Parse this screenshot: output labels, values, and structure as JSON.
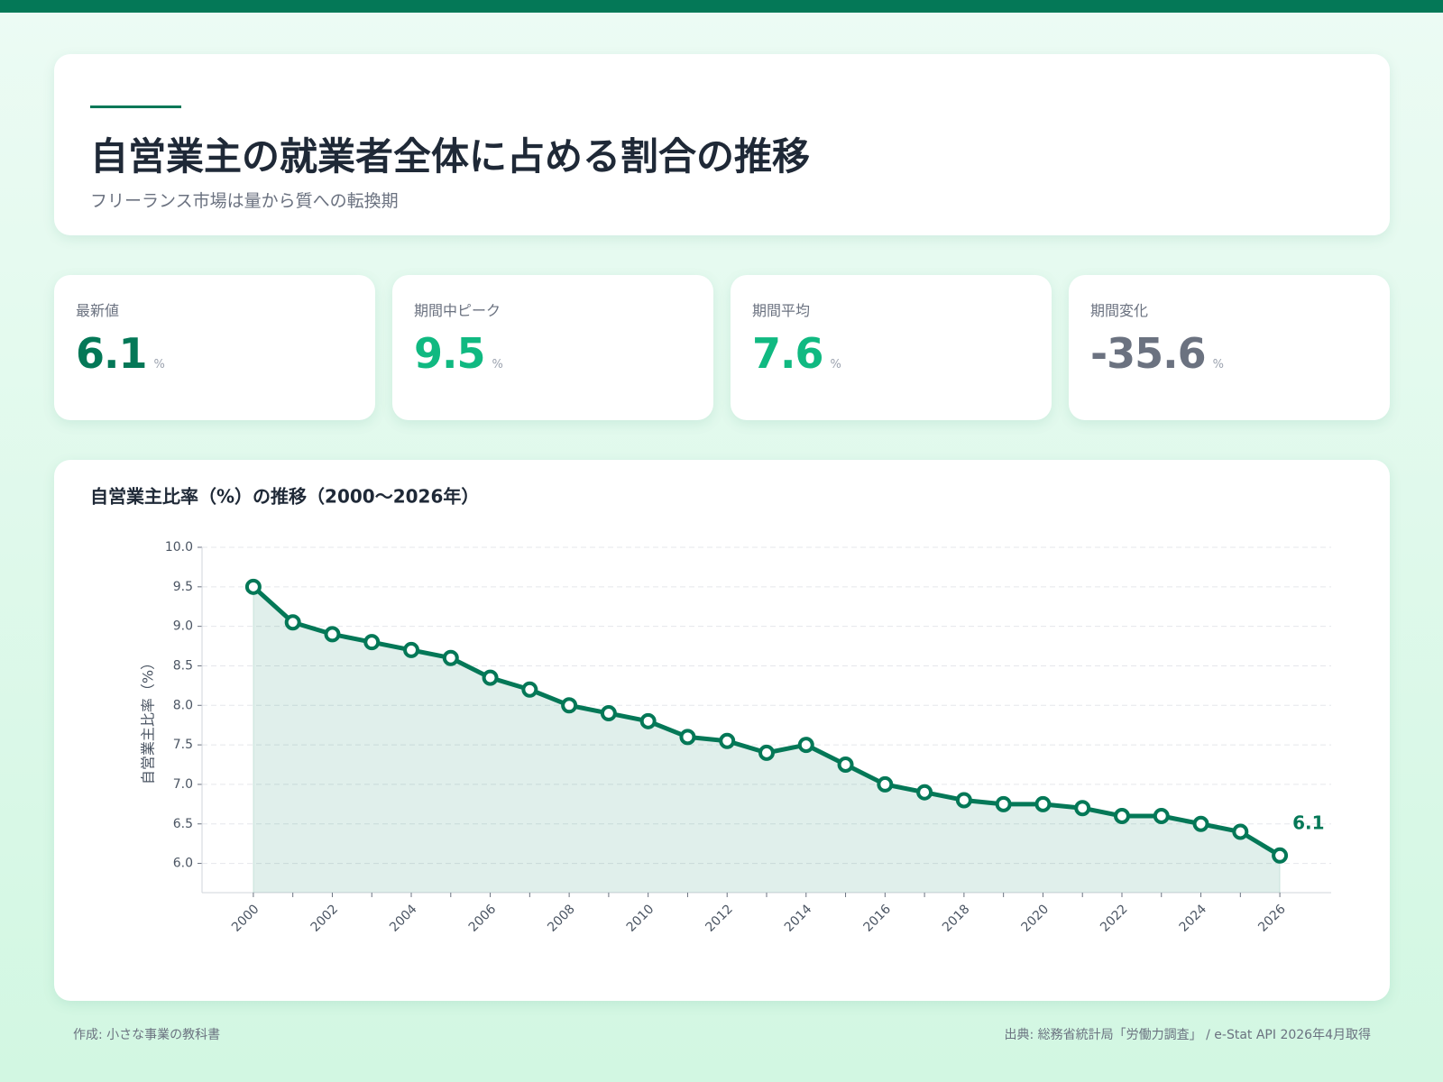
{
  "header": {
    "title": "自営業主の就業者全体に占める割合の推移",
    "subtitle": "フリーランス市場は量から質への転換期"
  },
  "kpis": [
    {
      "label": "最新値",
      "value": 6.1,
      "unit": "%"
    },
    {
      "label": "期間中ピーク",
      "value": 9.5,
      "unit": "%"
    },
    {
      "label": "期間平均",
      "value": 7.6,
      "unit": "%"
    },
    {
      "label": "期間変化",
      "value": -35.6,
      "unit": "%"
    }
  ],
  "chart_data": {
    "type": "line",
    "title": "自営業主比率（%）の推移（2000〜2026年）",
    "y_label": "自営業主比率（%）",
    "x": [
      2000,
      2001,
      2002,
      2003,
      2004,
      2005,
      2006,
      2007,
      2008,
      2009,
      2010,
      2011,
      2012,
      2013,
      2014,
      2015,
      2016,
      2017,
      2018,
      2019,
      2020,
      2021,
      2022,
      2023,
      2024,
      2025,
      2026
    ],
    "values": [
      9.5,
      9.05,
      8.9,
      8.8,
      8.7,
      8.6,
      8.35,
      8.2,
      8.0,
      7.9,
      7.8,
      7.6,
      7.55,
      7.4,
      7.5,
      7.25,
      7.0,
      6.9,
      6.8,
      6.75,
      6.75,
      6.7,
      6.6,
      6.6,
      6.5,
      6.4,
      6.1
    ],
    "color": "#047857",
    "xlim": [
      1998.7,
      2027.3
    ],
    "xticks": [
      2000,
      2002,
      2004,
      2006,
      2008,
      2010,
      2012,
      2014,
      2016,
      2018,
      2020,
      2022,
      2024,
      2026
    ],
    "ylim": [
      5.63,
      10.0
    ],
    "yticks": [
      {
        "value": 6,
        "label": "6.0"
      },
      6.5,
      {
        "value": 7,
        "label": "7.0"
      },
      7.5,
      {
        "value": 8,
        "label": "8.0"
      },
      8.5,
      {
        "value": 9,
        "label": "9.0"
      },
      9.5,
      {
        "value": 10,
        "label": "10.0"
      }
    ],
    "grid": true
  },
  "footer": {
    "left": "作成: 小さな事業の教科書",
    "right": "出典: 総務省統計局「労働力調査」 / e-Stat API 2026年4月取得"
  }
}
